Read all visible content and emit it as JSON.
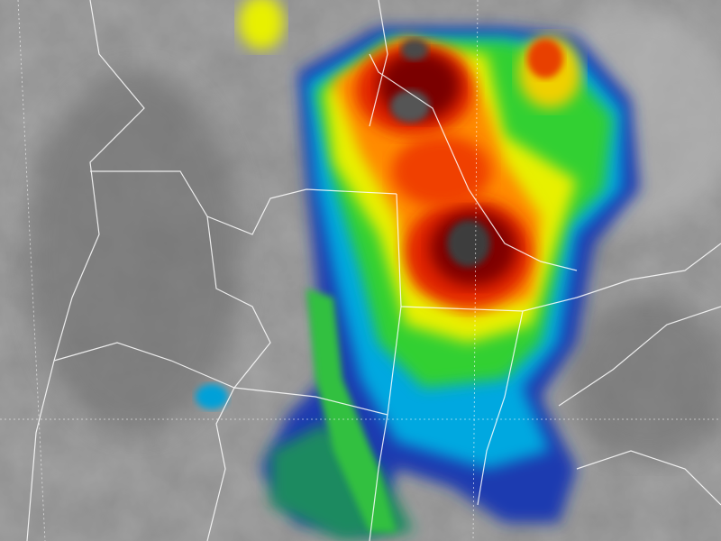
{
  "image": {
    "subject": "infrared-satellite-storm",
    "colors": {
      "background_cloud": "#8a8a8a",
      "cold_core": "#3a3a3a",
      "dark_red": "#7a0000",
      "red": "#e02000",
      "orange": "#ff8a00",
      "yellow": "#f0f000",
      "green": "#30d000",
      "cyan": "#00b0e0",
      "blue": "#0020a0",
      "border_lines": "#ffffff"
    }
  }
}
